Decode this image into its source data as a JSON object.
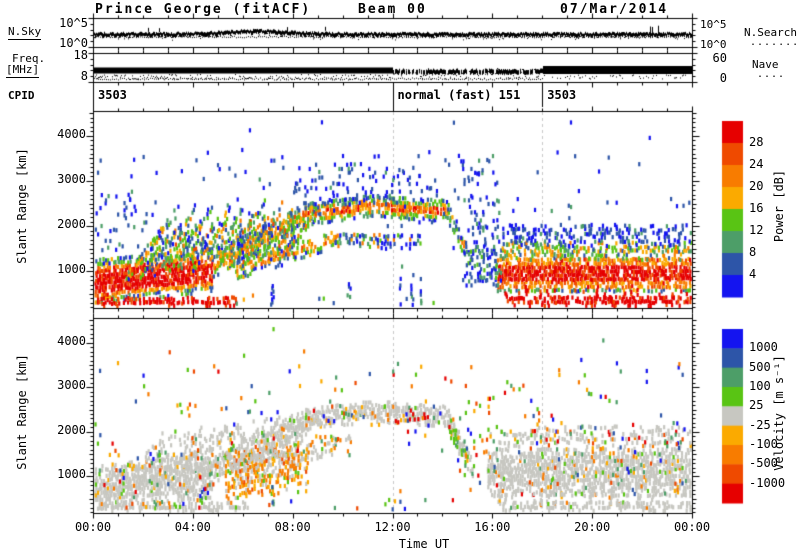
{
  "header": {
    "title": "Prince George (fitACF)",
    "beam": "Beam 00",
    "date": "07/Mar/2014"
  },
  "left_labels": {
    "nsky": "N.Sky",
    "freq1": "Freq.",
    "freq2": "[MHz]",
    "cpid": "CPID"
  },
  "right_labels": {
    "nsearch": "N.Search",
    "nsearch_dots": ".......",
    "nave": "Nave",
    "nave_dots": "...."
  },
  "axis": {
    "nsky_top": "10^5",
    "nsky_bottom": "10^0",
    "freq_top": "18",
    "freq_bottom": "8",
    "nave_top": "60",
    "nave_bottom": "0",
    "slant_range_label": "Slant Range [km]",
    "range_tick_values": [
      1000,
      2000,
      3000,
      4000
    ],
    "time_label": "Time UT",
    "time_tick_hours": [
      0,
      4,
      8,
      12,
      16,
      20,
      24
    ],
    "time_tick_labels": [
      "00:00",
      "04:00",
      "08:00",
      "12:00",
      "16:00",
      "20:00",
      "00:00"
    ]
  },
  "cpid_segments": [
    {
      "start_hour": 0,
      "end_hour": 12,
      "label": "3503"
    },
    {
      "start_hour": 12,
      "end_hour": 18,
      "label": "normal (fast) 151"
    },
    {
      "start_hour": 18,
      "end_hour": 24,
      "label": "3503"
    }
  ],
  "power_colorbar": {
    "title": "Power [dB]",
    "tick_labels": [
      "28",
      "24",
      "20",
      "16",
      "12",
      "8",
      "4"
    ],
    "colors_top_to_bottom": [
      "#e60000",
      "#ef4a00",
      "#f87c00",
      "#fbaa00",
      "#59c414",
      "#4d9e68",
      "#2d55a8",
      "#1414f0"
    ]
  },
  "velocity_colorbar": {
    "title": "Velocity [m s⁻¹]",
    "tick_labels": [
      "1000",
      "500",
      "100",
      "25",
      "-25",
      "-100",
      "-500",
      "-1000"
    ],
    "colors_top_to_bottom": [
      "#1414f0",
      "#2d55a8",
      "#4d9e68",
      "#59c414",
      "#c7c7c1",
      "#fbaa00",
      "#f87c00",
      "#ef4a00",
      "#e60000"
    ]
  },
  "chart_data": [
    {
      "id": "nsky_panel",
      "type": "line",
      "yscale": "log",
      "yrange": [
        "10^0",
        "10^5"
      ],
      "series": [
        {
          "name": "N.Sky",
          "style": "solid",
          "description": "thick noisy trace near 10^2, broad bump ~06:30 UT, tall spikes ~22:00 UT"
        },
        {
          "name": "N.Search",
          "style": "dotted",
          "description": "dotted trace just below N.Sky trace"
        }
      ]
    },
    {
      "id": "freq_panel",
      "type": "line",
      "yrange": [
        8,
        18
      ],
      "series": [
        {
          "name": "Freq",
          "style": "solid",
          "description": "solid band ~10.5-11 MHz; ragged/scattered 12:00-18:00 UT, thick solid otherwise"
        },
        {
          "name": "Nave",
          "style": "dotted",
          "yrange_right": [
            0,
            60
          ],
          "description": "dotted low values, merging with band after 18:00 UT"
        }
      ]
    },
    {
      "id": "cpid_row",
      "type": "table",
      "segments": [
        {
          "hours": [
            0,
            12
          ],
          "label": "3503"
        },
        {
          "hours": [
            12,
            18
          ],
          "label": "normal (fast) 151"
        },
        {
          "hours": [
            18,
            24
          ],
          "label": "3503"
        }
      ]
    },
    {
      "id": "power_rti",
      "type": "heatmap",
      "xlabel": "Time UT",
      "ylabel": "Slant Range [km]",
      "xrange_hours": [
        0,
        24
      ],
      "yrange_km": [
        180,
        4550
      ],
      "colorbar_title": "Power [dB]",
      "colorbar_bounds_dB": [
        4,
        8,
        12,
        16,
        20,
        24,
        28
      ],
      "mode_change_lines_hours": [
        12,
        18
      ],
      "features": {
        "bands": [
          {
            "t": [
              0,
              4.8
            ],
            "c": [
              760,
              1020
            ],
            "hw": 470,
            "d": 0.93,
            "p": "hot"
          },
          {
            "t": [
              0.15,
              5.7
            ],
            "c": [
              300,
              320
            ],
            "hw": 95,
            "d": 0.85,
            "p": "red"
          },
          {
            "t": [
              4.8,
              8.5
            ],
            "c": [
              1150,
              2250
            ],
            "hw": 270,
            "d": 0.8,
            "p": "warm"
          },
          {
            "t": [
              8.5,
              11.2
            ],
            "c": [
              2280,
              2460
            ],
            "hw": 230,
            "d": 0.88,
            "p": "mid"
          },
          {
            "t": [
              11.2,
              14.2
            ],
            "c": [
              2460,
              2340
            ],
            "hw": 230,
            "d": 0.88,
            "p": "mid"
          },
          {
            "t": [
              14.2,
              15.2
            ],
            "c": [
              2320,
              1150
            ],
            "hw": 200,
            "d": 0.7,
            "p": "mixcool"
          },
          {
            "t": [
              5.6,
              9.7
            ],
            "c": [
              1000,
              1720
            ],
            "hw": 190,
            "d": 0.65,
            "p": "warm"
          },
          {
            "t": [
              9.7,
              13.2
            ],
            "c": [
              1720,
              1680
            ],
            "hw": 170,
            "d": 0.4,
            "p": "mixcool"
          },
          {
            "t": [
              16.2,
              24
            ],
            "c": [
              950,
              950
            ],
            "hw": 380,
            "d": 0.92,
            "p": "hot"
          },
          {
            "t": [
              16.3,
              24
            ],
            "c": [
              1450,
              1450
            ],
            "hw": 180,
            "d": 0.6,
            "p": "warmgreen"
          },
          {
            "t": [
              16.0,
              24
            ],
            "c": [
              1800,
              1800
            ],
            "hw": 220,
            "d": 0.35,
            "p": "cool"
          },
          {
            "t": [
              16.6,
              24
            ],
            "c": [
              330,
              330
            ],
            "hw": 100,
            "d": 0.8,
            "p": "red"
          }
        ],
        "streaks": [
          {
            "t": [
              1.3,
              8.0
            ],
            "spacing": 0.52,
            "dur": 1.5,
            "r0": 880,
            "rise": 1050,
            "lift": 40,
            "hw": 110,
            "d": 0.55,
            "p": "warm"
          },
          {
            "t": [
              2.2,
              7.0
            ],
            "spacing": 0.7,
            "dur": 1.2,
            "r0": 1500,
            "rise": 900,
            "lift": 30,
            "hw": 90,
            "d": 0.35,
            "p": "mixcool"
          }
        ],
        "sparse": [
          {
            "t": [
              0,
              24
            ],
            "r": [
              1500,
              3700
            ],
            "d": 0.018,
            "p": "cool"
          },
          {
            "t": [
              8.0,
              13.0
            ],
            "r": [
              2500,
              3300
            ],
            "d": 0.08,
            "p": "cool"
          },
          {
            "t": [
              9.5,
              15.5
            ],
            "r": [
              2600,
              3600
            ],
            "d": 0.05,
            "p": "cool"
          },
          {
            "t": [
              0,
              2.2
            ],
            "r": [
              1400,
              2700
            ],
            "d": 0.08,
            "p": "cool"
          },
          {
            "t": [
              14.7,
              16.3
            ],
            "r": [
              700,
              3300
            ],
            "d": 0.1,
            "p": "cool"
          },
          {
            "t": [
              15.3,
              16.2
            ],
            "r": [
              700,
              1600
            ],
            "d": 0.3,
            "p": "coolgreen"
          },
          {
            "t": [
              0,
              24
            ],
            "r": [
              3700,
              4350
            ],
            "d": 0.004,
            "p": "cool"
          },
          {
            "t": [
              5.5,
              14.5
            ],
            "r": [
              200,
              500
            ],
            "d": 0.04,
            "p": "mixcool"
          }
        ],
        "vstreaks": [
          {
            "t": 7.15,
            "r": [
              250,
              950
            ],
            "d": 0.6,
            "p": "cool"
          },
          {
            "t": 10.25,
            "r": [
              300,
              850
            ],
            "d": 0.5,
            "p": "cool"
          },
          {
            "t": 12.3,
            "r": [
              250,
              1100
            ],
            "d": 0.55,
            "p": "cool"
          },
          {
            "t": 12.75,
            "r": [
              250,
              1000
            ],
            "d": 0.5,
            "p": "cool"
          },
          {
            "t": 13.1,
            "r": [
              300,
              900
            ],
            "d": 0.45,
            "p": "cool"
          }
        ],
        "comb": {
          "t": [
            16.2,
            24
          ],
          "spacing": 0.28,
          "w": 0.1,
          "r": [
            420,
            620
          ],
          "d": 0.35,
          "p": "red"
        }
      }
    },
    {
      "id": "velocity_rti",
      "type": "heatmap",
      "xlabel": "Time UT",
      "ylabel": "Slant Range [km]",
      "xrange_hours": [
        0,
        24
      ],
      "yrange_km": [
        180,
        4550
      ],
      "colorbar_title": "Velocity [m s⁻¹]",
      "colorbar_bounds_ms": [
        -1000,
        -500,
        -100,
        -25,
        25,
        100,
        500,
        1000
      ],
      "mode_change_lines_hours": [
        12,
        18
      ],
      "features": {
        "bands": [
          {
            "t": [
              0,
              4.8
            ],
            "c": [
              760,
              1020
            ],
            "hw": 470,
            "d": 0.85,
            "p": "gray"
          },
          {
            "t": [
              0.15,
              6.2
            ],
            "c": [
              300,
              320
            ],
            "hw": 90,
            "d": 0.7,
            "p": "gray"
          },
          {
            "t": [
              4.8,
              8.5
            ],
            "c": [
              1150,
              2250
            ],
            "hw": 260,
            "d": 0.7,
            "p": "gray"
          },
          {
            "t": [
              8.5,
              11.2
            ],
            "c": [
              2280,
              2460
            ],
            "hw": 215,
            "d": 0.8,
            "p": "gray"
          },
          {
            "t": [
              11.2,
              14.2
            ],
            "c": [
              2460,
              2340
            ],
            "hw": 215,
            "d": 0.8,
            "p": "gray"
          },
          {
            "t": [
              14.2,
              15.2
            ],
            "c": [
              2320,
              1150
            ],
            "hw": 190,
            "d": 0.55,
            "p": "grayish"
          },
          {
            "t": [
              5.6,
              9.7
            ],
            "c": [
              1000,
              1720
            ],
            "hw": 180,
            "d": 0.5,
            "p": "gray"
          },
          {
            "t": [
              5.3,
              8.6
            ],
            "c": [
              1050,
              1250
            ],
            "hw": 560,
            "d": 0.5,
            "p": "oblob"
          },
          {
            "t": [
              8.6,
              10.3
            ],
            "c": [
              1750,
              1800
            ],
            "hw": 130,
            "d": 0.25,
            "p": "oblob"
          },
          {
            "t": [
              14.25,
              15.05
            ],
            "c": [
              2150,
              1300
            ],
            "hw": 220,
            "d": 0.65,
            "p": "green"
          },
          {
            "t": [
              15.8,
              24
            ],
            "c": [
              1100,
              1100
            ],
            "hw": 520,
            "d": 0.8,
            "p": "gray"
          },
          {
            "t": [
              15.9,
              24
            ],
            "c": [
              1900,
              1900
            ],
            "hw": 220,
            "d": 0.35,
            "p": "grayspeck"
          },
          {
            "t": [
              16.4,
              24
            ],
            "c": [
              330,
              330
            ],
            "hw": 100,
            "d": 0.6,
            "p": "gray"
          }
        ],
        "streaks": [
          {
            "t": [
              1.3,
              8.0
            ],
            "spacing": 0.52,
            "dur": 1.5,
            "r0": 880,
            "rise": 1050,
            "lift": 40,
            "hw": 100,
            "d": 0.45,
            "p": "gray"
          }
        ],
        "sparse": [
          {
            "t": [
              0,
              24
            ],
            "r": [
              1500,
              3700
            ],
            "d": 0.02,
            "p": "any"
          },
          {
            "t": [
              0,
              5
            ],
            "r": [
              300,
              1500
            ],
            "d": 0.05,
            "p": "any"
          },
          {
            "t": [
              8.5,
              14.2
            ],
            "r": [
              2150,
              2650
            ],
            "d": 0.06,
            "p": "any"
          },
          {
            "t": [
              12.6,
              13.4
            ],
            "r": [
              2300,
              2550
            ],
            "d": 0.2,
            "p": "reds"
          },
          {
            "t": [
              16,
              24
            ],
            "r": [
              600,
              2100
            ],
            "d": 0.05,
            "p": "any"
          },
          {
            "t": [
              14.6,
              16.2
            ],
            "r": [
              700,
              2800
            ],
            "d": 0.07,
            "p": "any"
          },
          {
            "t": [
              0,
              24
            ],
            "r": [
              3700,
              4350
            ],
            "d": 0.004,
            "p": "any"
          },
          {
            "t": [
              5.5,
              14.5
            ],
            "r": [
              200,
              500
            ],
            "d": 0.035,
            "p": "any"
          }
        ],
        "vstreaks": [
          {
            "t": 7.15,
            "r": [
              300,
              900
            ],
            "d": 0.3,
            "p": "any"
          },
          {
            "t": 12.3,
            "r": [
              300,
              900
            ],
            "d": 0.3,
            "p": "any"
          }
        ],
        "comb": {
          "t": [
            16.2,
            24
          ],
          "spacing": 0.28,
          "w": 0.1,
          "r": [
            380,
            620
          ],
          "d": 0.45,
          "p": "gray"
        }
      }
    }
  ]
}
